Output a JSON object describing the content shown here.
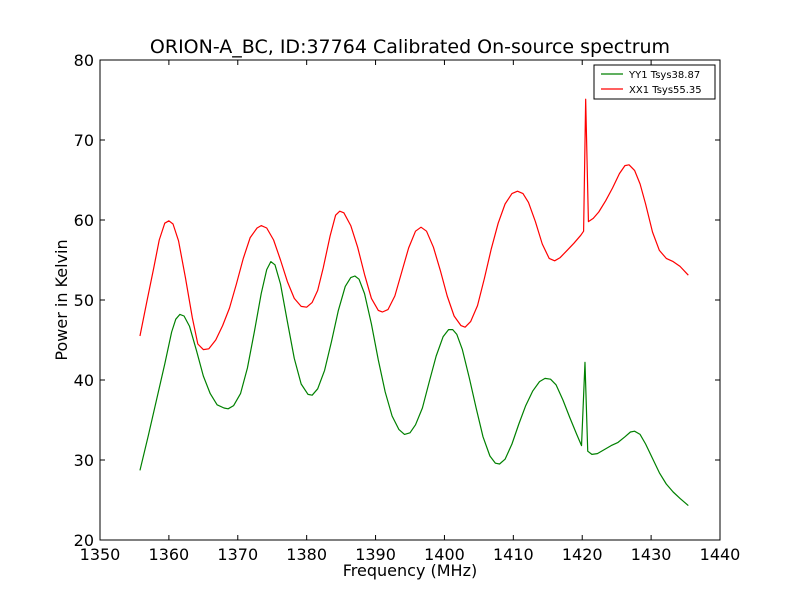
{
  "chart_data": {
    "type": "line",
    "title": "ORION-A_BC, ID:37764 Calibrated On-source spectrum",
    "xlabel": "Frequency (MHz)",
    "ylabel": "Power in Kelvin",
    "xlim": [
      1350,
      1440
    ],
    "ylim": [
      20,
      80
    ],
    "xticks": [
      1350,
      1360,
      1370,
      1380,
      1390,
      1400,
      1410,
      1420,
      1430,
      1440
    ],
    "yticks": [
      20,
      30,
      40,
      50,
      60,
      70,
      80
    ],
    "grid": false,
    "legend_position": "top-right",
    "series": [
      {
        "name": "YY1 Tsys38.87",
        "color": "#008000",
        "points": [
          [
            1355.8,
            28.7
          ],
          [
            1357.0,
            33.0
          ],
          [
            1358.2,
            37.5
          ],
          [
            1359.4,
            42.0
          ],
          [
            1360.4,
            46.0
          ],
          [
            1361.0,
            47.6
          ],
          [
            1361.6,
            48.2
          ],
          [
            1362.2,
            48.0
          ],
          [
            1363.0,
            46.7
          ],
          [
            1364.0,
            43.7
          ],
          [
            1365.0,
            40.5
          ],
          [
            1366.0,
            38.3
          ],
          [
            1367.0,
            36.9
          ],
          [
            1368.0,
            36.5
          ],
          [
            1368.6,
            36.4
          ],
          [
            1369.4,
            36.8
          ],
          [
            1370.4,
            38.3
          ],
          [
            1371.4,
            41.5
          ],
          [
            1372.4,
            46.0
          ],
          [
            1373.4,
            50.8
          ],
          [
            1374.2,
            53.8
          ],
          [
            1374.8,
            54.8
          ],
          [
            1375.4,
            54.4
          ],
          [
            1376.2,
            52.0
          ],
          [
            1377.2,
            47.3
          ],
          [
            1378.2,
            42.7
          ],
          [
            1379.2,
            39.5
          ],
          [
            1380.2,
            38.2
          ],
          [
            1380.8,
            38.1
          ],
          [
            1381.6,
            38.9
          ],
          [
            1382.6,
            41.2
          ],
          [
            1383.6,
            44.8
          ],
          [
            1384.6,
            48.7
          ],
          [
            1385.6,
            51.7
          ],
          [
            1386.4,
            52.8
          ],
          [
            1387.0,
            53.0
          ],
          [
            1387.6,
            52.6
          ],
          [
            1388.4,
            50.8
          ],
          [
            1389.4,
            47.0
          ],
          [
            1390.4,
            42.5
          ],
          [
            1391.4,
            38.5
          ],
          [
            1392.4,
            35.5
          ],
          [
            1393.4,
            33.8
          ],
          [
            1394.2,
            33.2
          ],
          [
            1395.0,
            33.4
          ],
          [
            1395.8,
            34.4
          ],
          [
            1396.8,
            36.5
          ],
          [
            1397.8,
            39.8
          ],
          [
            1398.8,
            43.0
          ],
          [
            1399.8,
            45.4
          ],
          [
            1400.6,
            46.3
          ],
          [
            1401.2,
            46.3
          ],
          [
            1401.8,
            45.7
          ],
          [
            1402.6,
            43.8
          ],
          [
            1403.6,
            40.3
          ],
          [
            1404.6,
            36.5
          ],
          [
            1405.6,
            32.9
          ],
          [
            1406.6,
            30.5
          ],
          [
            1407.4,
            29.6
          ],
          [
            1408.0,
            29.5
          ],
          [
            1408.8,
            30.1
          ],
          [
            1409.8,
            32.0
          ],
          [
            1410.8,
            34.5
          ],
          [
            1411.8,
            36.8
          ],
          [
            1412.8,
            38.6
          ],
          [
            1413.8,
            39.8
          ],
          [
            1414.6,
            40.2
          ],
          [
            1415.4,
            40.1
          ],
          [
            1416.2,
            39.4
          ],
          [
            1417.2,
            37.5
          ],
          [
            1418.2,
            35.3
          ],
          [
            1419.2,
            33.2
          ],
          [
            1419.9,
            31.8
          ],
          [
            1420.4,
            42.2
          ],
          [
            1420.8,
            31.1
          ],
          [
            1421.4,
            30.7
          ],
          [
            1422.2,
            30.8
          ],
          [
            1423.2,
            31.3
          ],
          [
            1424.2,
            31.8
          ],
          [
            1425.2,
            32.2
          ],
          [
            1426.2,
            32.9
          ],
          [
            1427.0,
            33.5
          ],
          [
            1427.6,
            33.6
          ],
          [
            1428.4,
            33.2
          ],
          [
            1429.2,
            32.0
          ],
          [
            1430.2,
            30.2
          ],
          [
            1431.2,
            28.4
          ],
          [
            1432.2,
            27.0
          ],
          [
            1433.2,
            26.0
          ],
          [
            1434.2,
            25.2
          ],
          [
            1435.4,
            24.3
          ]
        ]
      },
      {
        "name": "XX1 Tsys55.35",
        "color": "#ff0000",
        "points": [
          [
            1355.8,
            45.5
          ],
          [
            1356.8,
            49.8
          ],
          [
            1357.8,
            54.0
          ],
          [
            1358.6,
            57.5
          ],
          [
            1359.4,
            59.6
          ],
          [
            1360.0,
            59.9
          ],
          [
            1360.6,
            59.5
          ],
          [
            1361.4,
            57.4
          ],
          [
            1362.4,
            52.8
          ],
          [
            1363.4,
            47.8
          ],
          [
            1364.2,
            44.5
          ],
          [
            1365.0,
            43.8
          ],
          [
            1365.8,
            43.9
          ],
          [
            1366.8,
            45.0
          ],
          [
            1367.8,
            46.8
          ],
          [
            1368.8,
            49.0
          ],
          [
            1369.8,
            52.0
          ],
          [
            1370.8,
            55.2
          ],
          [
            1371.8,
            57.8
          ],
          [
            1372.8,
            59.0
          ],
          [
            1373.4,
            59.3
          ],
          [
            1374.2,
            59.0
          ],
          [
            1375.2,
            57.5
          ],
          [
            1376.2,
            55.0
          ],
          [
            1377.2,
            52.3
          ],
          [
            1378.2,
            50.2
          ],
          [
            1379.2,
            49.2
          ],
          [
            1380.0,
            49.1
          ],
          [
            1380.8,
            49.7
          ],
          [
            1381.6,
            51.2
          ],
          [
            1382.4,
            54.0
          ],
          [
            1383.4,
            58.0
          ],
          [
            1384.2,
            60.6
          ],
          [
            1384.8,
            61.1
          ],
          [
            1385.4,
            60.9
          ],
          [
            1386.4,
            59.3
          ],
          [
            1387.4,
            56.6
          ],
          [
            1388.4,
            53.2
          ],
          [
            1389.4,
            50.2
          ],
          [
            1390.4,
            48.7
          ],
          [
            1391.0,
            48.5
          ],
          [
            1391.8,
            48.8
          ],
          [
            1392.8,
            50.5
          ],
          [
            1393.8,
            53.5
          ],
          [
            1394.8,
            56.5
          ],
          [
            1395.8,
            58.6
          ],
          [
            1396.6,
            59.1
          ],
          [
            1397.4,
            58.6
          ],
          [
            1398.4,
            56.6
          ],
          [
            1399.4,
            53.7
          ],
          [
            1400.4,
            50.5
          ],
          [
            1401.4,
            48.0
          ],
          [
            1402.4,
            46.8
          ],
          [
            1403.0,
            46.6
          ],
          [
            1403.8,
            47.3
          ],
          [
            1404.8,
            49.3
          ],
          [
            1405.8,
            52.7
          ],
          [
            1406.8,
            56.4
          ],
          [
            1407.8,
            59.6
          ],
          [
            1408.8,
            62.0
          ],
          [
            1409.8,
            63.3
          ],
          [
            1410.6,
            63.6
          ],
          [
            1411.4,
            63.3
          ],
          [
            1412.2,
            62.2
          ],
          [
            1413.2,
            59.8
          ],
          [
            1414.2,
            57.0
          ],
          [
            1415.2,
            55.2
          ],
          [
            1416.0,
            54.9
          ],
          [
            1416.8,
            55.3
          ],
          [
            1417.8,
            56.2
          ],
          [
            1418.8,
            57.1
          ],
          [
            1419.8,
            58.1
          ],
          [
            1420.2,
            58.6
          ],
          [
            1420.5,
            75.1
          ],
          [
            1420.9,
            59.8
          ],
          [
            1421.6,
            60.2
          ],
          [
            1422.4,
            61.0
          ],
          [
            1423.4,
            62.4
          ],
          [
            1424.4,
            64.0
          ],
          [
            1425.4,
            65.8
          ],
          [
            1426.2,
            66.8
          ],
          [
            1426.8,
            66.9
          ],
          [
            1427.6,
            66.2
          ],
          [
            1428.4,
            64.5
          ],
          [
            1429.2,
            62.0
          ],
          [
            1430.2,
            58.5
          ],
          [
            1431.2,
            56.2
          ],
          [
            1432.2,
            55.2
          ],
          [
            1433.2,
            54.8
          ],
          [
            1434.2,
            54.2
          ],
          [
            1435.4,
            53.1
          ]
        ]
      }
    ]
  }
}
